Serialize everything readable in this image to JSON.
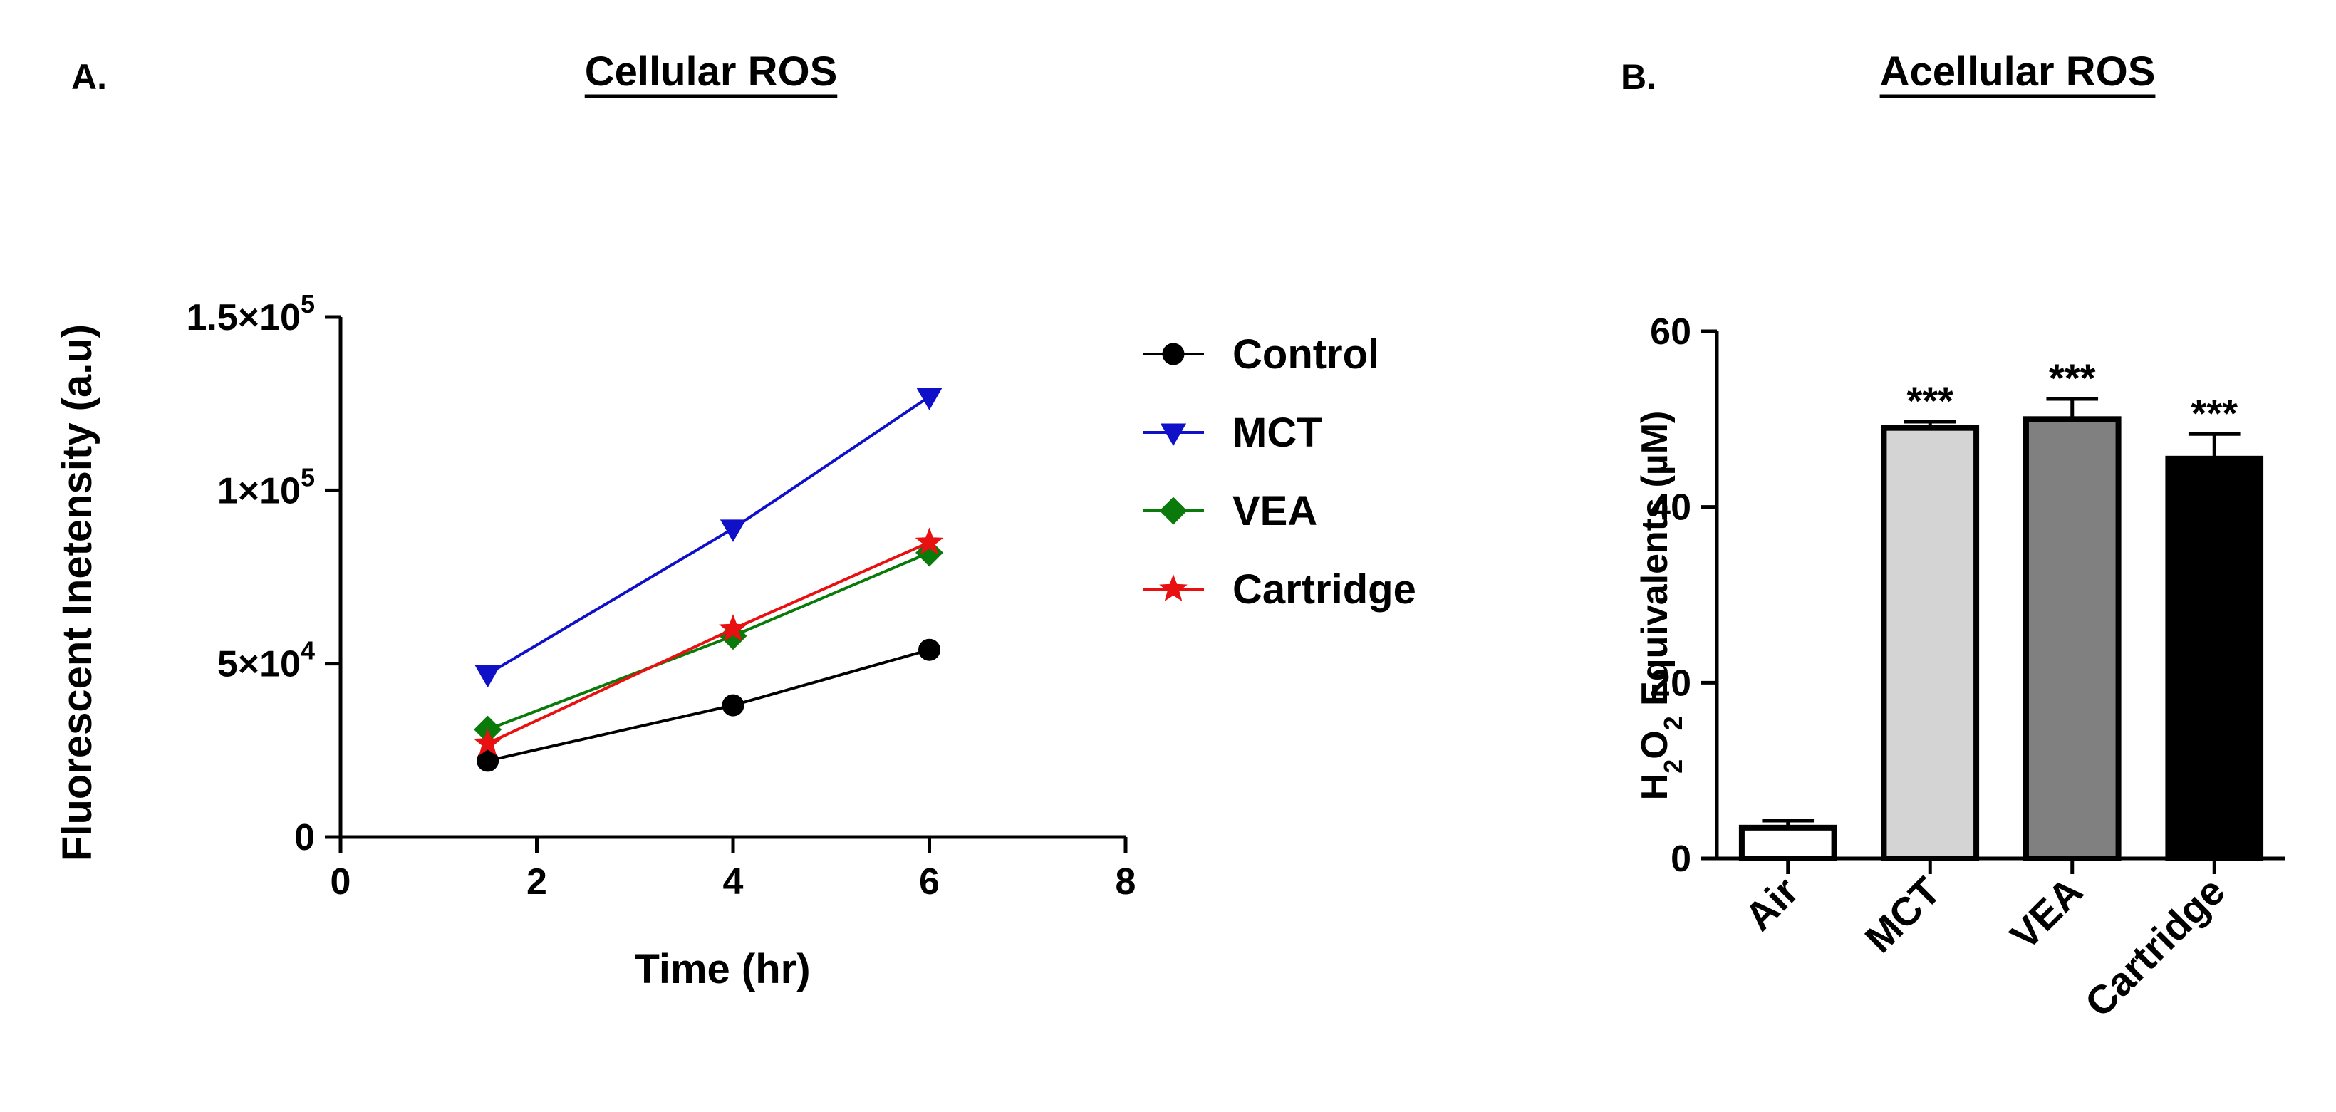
{
  "chart_data": [
    {
      "panel_label": "A.",
      "title": "Cellular ROS",
      "type": "line",
      "xlabel": "Time (hr)",
      "ylabel": "Fluorescent Inetensity (a.u)",
      "xlim": [
        0,
        8
      ],
      "ylim": [
        0,
        150000
      ],
      "x_ticks": [
        0,
        2,
        4,
        6,
        8
      ],
      "x_tick_labels": [
        "0",
        "2",
        "4",
        "6",
        "8"
      ],
      "y_ticks": [
        0,
        50000,
        100000,
        150000
      ],
      "y_tick_labels": [
        {
          "base": "0",
          "exp": ""
        },
        {
          "base": "5×10",
          "exp": "4"
        },
        {
          "base": "1×10",
          "exp": "5"
        },
        {
          "base": "1.5×10",
          "exp": "5"
        }
      ],
      "legend_position": "right",
      "x": [
        1.5,
        4,
        6
      ],
      "series": [
        {
          "name": "Control",
          "color": "#000000",
          "marker": "circle",
          "values": [
            22000,
            38000,
            54000
          ]
        },
        {
          "name": "MCT",
          "color": "#1010c8",
          "marker": "triangle-down",
          "values": [
            47000,
            89000,
            127000
          ]
        },
        {
          "name": "VEA",
          "color": "#0a7a0a",
          "marker": "diamond",
          "values": [
            31000,
            58000,
            82000
          ]
        },
        {
          "name": "Cartridge",
          "color": "#e81010",
          "marker": "star",
          "values": [
            27000,
            60000,
            85000
          ]
        }
      ]
    },
    {
      "panel_label": "B.",
      "title": "Acellular ROS",
      "type": "bar",
      "ylabel_parts": [
        {
          "text": "H",
          "sub": false
        },
        {
          "text": "2",
          "sub": true
        },
        {
          "text": "O",
          "sub": false
        },
        {
          "text": "2",
          "sub": true
        },
        {
          "text": " Equivalents (µM)",
          "sub": false
        }
      ],
      "ylim": [
        0,
        60
      ],
      "y_ticks": [
        0,
        20,
        40,
        60
      ],
      "y_tick_labels": [
        "0",
        "20",
        "40",
        "60"
      ],
      "categories": [
        "Air",
        "MCT",
        "VEA",
        "Cartridge"
      ],
      "values": [
        3.5,
        49,
        50,
        45.5
      ],
      "errors": [
        0.8,
        0.7,
        2.3,
        2.8
      ],
      "colors": [
        "#ffffff",
        "#d4d4d4",
        "#808080",
        "#000000"
      ],
      "annotations": [
        "",
        "***",
        "***",
        "***"
      ]
    }
  ]
}
